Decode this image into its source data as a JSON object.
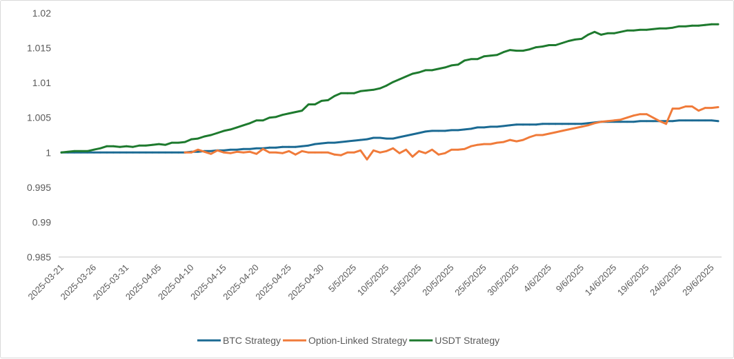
{
  "chart_data": {
    "type": "line",
    "title": "",
    "xlabel": "",
    "ylabel": "",
    "ylim": [
      0.985,
      1.02
    ],
    "yticks": [
      "0.985",
      "0.99",
      "0.995",
      "1",
      "1.005",
      "1.01",
      "1.015",
      "1.02"
    ],
    "ytick_values": [
      0.985,
      0.99,
      0.995,
      1,
      1.005,
      1.01,
      1.015,
      1.02
    ],
    "grid": false,
    "legend_position": "bottom",
    "x_tick_labels": [
      "2025-03-21",
      "2025-03-26",
      "2025-03-31",
      "2025-04-05",
      "2025-04-10",
      "2025-04-15",
      "2025-04-20",
      "2025-04-25",
      "2025-04-30",
      "5/5/2025",
      "10/5/2025",
      "15/5/2025",
      "20/5/2025",
      "25/5/2025",
      "30/5/2025",
      "4/6/2025",
      "9/6/2025",
      "14/6/2025",
      "19/6/2025",
      "24/6/2025",
      "29/6/2025"
    ],
    "x_tick_every_days": 5,
    "x": [
      "2025-03-21",
      "2025-03-22",
      "2025-03-23",
      "2025-03-24",
      "2025-03-25",
      "2025-03-26",
      "2025-03-27",
      "2025-03-28",
      "2025-03-29",
      "2025-03-30",
      "2025-03-31",
      "2025-04-01",
      "2025-04-02",
      "2025-04-03",
      "2025-04-04",
      "2025-04-05",
      "2025-04-06",
      "2025-04-07",
      "2025-04-08",
      "2025-04-09",
      "2025-04-10",
      "2025-04-11",
      "2025-04-12",
      "2025-04-13",
      "2025-04-14",
      "2025-04-15",
      "2025-04-16",
      "2025-04-17",
      "2025-04-18",
      "2025-04-19",
      "2025-04-20",
      "2025-04-21",
      "2025-04-22",
      "2025-04-23",
      "2025-04-24",
      "2025-04-25",
      "2025-04-26",
      "2025-04-27",
      "2025-04-28",
      "2025-04-29",
      "2025-04-30",
      "2025-05-01",
      "2025-05-02",
      "2025-05-03",
      "2025-05-04",
      "2025-05-05",
      "2025-05-06",
      "2025-05-07",
      "2025-05-08",
      "2025-05-09",
      "2025-05-10",
      "2025-05-11",
      "2025-05-12",
      "2025-05-13",
      "2025-05-14",
      "2025-05-15",
      "2025-05-16",
      "2025-05-17",
      "2025-05-18",
      "2025-05-19",
      "2025-05-20",
      "2025-05-21",
      "2025-05-22",
      "2025-05-23",
      "2025-05-24",
      "2025-05-25",
      "2025-05-26",
      "2025-05-27",
      "2025-05-28",
      "2025-05-29",
      "2025-05-30",
      "2025-05-31",
      "2025-06-01",
      "2025-06-02",
      "2025-06-03",
      "2025-06-04",
      "2025-06-05",
      "2025-06-06",
      "2025-06-07",
      "2025-06-08",
      "2025-06-09",
      "2025-06-10",
      "2025-06-11",
      "2025-06-12",
      "2025-06-13",
      "2025-06-14",
      "2025-06-15",
      "2025-06-16",
      "2025-06-17",
      "2025-06-18",
      "2025-06-19",
      "2025-06-20",
      "2025-06-21",
      "2025-06-22",
      "2025-06-23",
      "2025-06-24",
      "2025-06-25",
      "2025-06-26",
      "2025-06-27",
      "2025-06-28",
      "2025-06-29",
      "2025-06-30"
    ],
    "series": [
      {
        "name": "BTC Strategy",
        "color": "#1b6a93",
        "values": [
          1.0,
          1.0,
          1.0,
          1.0,
          1.0,
          1.0,
          1.0,
          1.0,
          1.0,
          1.0,
          1.0,
          1.0,
          1.0,
          1.0,
          1.0,
          1.0,
          1.0,
          1.0,
          1.0,
          1.0,
          1.0001,
          1.0001,
          1.0002,
          1.0002,
          1.0003,
          1.0003,
          1.0004,
          1.0004,
          1.0005,
          1.0005,
          1.0006,
          1.0006,
          1.0007,
          1.0007,
          1.0008,
          1.0008,
          1.0008,
          1.0009,
          1.001,
          1.0012,
          1.0013,
          1.0014,
          1.0014,
          1.0015,
          1.0016,
          1.0017,
          1.0018,
          1.0019,
          1.0021,
          1.0021,
          1.002,
          1.002,
          1.0022,
          1.0024,
          1.0026,
          1.0028,
          1.003,
          1.0031,
          1.0031,
          1.0031,
          1.0032,
          1.0032,
          1.0033,
          1.0034,
          1.0036,
          1.0036,
          1.0037,
          1.0037,
          1.0038,
          1.0039,
          1.004,
          1.004,
          1.004,
          1.004,
          1.0041,
          1.0041,
          1.0041,
          1.0041,
          1.0041,
          1.0041,
          1.0041,
          1.0042,
          1.0043,
          1.0044,
          1.0044,
          1.0044,
          1.0044,
          1.0044,
          1.0044,
          1.0045,
          1.0045,
          1.0045,
          1.0045,
          1.0045,
          1.0045,
          1.0046,
          1.0046,
          1.0046,
          1.0046,
          1.0046,
          1.0046,
          1.0045
        ]
      },
      {
        "name": "Option-Linked Strategy",
        "color": "#f07b3a",
        "values": [
          null,
          null,
          null,
          null,
          null,
          null,
          null,
          null,
          null,
          null,
          null,
          null,
          null,
          null,
          null,
          null,
          null,
          null,
          null,
          1.0,
          1.0,
          1.0004,
          1.0001,
          0.9998,
          1.0003,
          1.0,
          0.9999,
          1.0001,
          1.0,
          1.0001,
          0.9998,
          1.0005,
          1.0,
          1.0,
          0.9999,
          1.0002,
          0.9997,
          1.0002,
          1.0,
          1.0,
          1.0,
          1.0,
          0.9997,
          0.9996,
          1.0,
          1.0,
          1.0003,
          0.999,
          1.0003,
          1.0,
          1.0002,
          1.0006,
          0.9999,
          1.0004,
          0.9994,
          1.0002,
          0.9999,
          1.0004,
          0.9997,
          0.9999,
          1.0004,
          1.0004,
          1.0005,
          1.0009,
          1.0011,
          1.0012,
          1.0012,
          1.0014,
          1.0015,
          1.0018,
          1.0016,
          1.0018,
          1.0022,
          1.0025,
          1.0025,
          1.0027,
          1.0029,
          1.0031,
          1.0033,
          1.0035,
          1.0037,
          1.0039,
          1.0042,
          1.0044,
          1.0045,
          1.0046,
          1.0047,
          1.005,
          1.0053,
          1.0055,
          1.0055,
          1.005,
          1.0045,
          1.0041,
          1.0063,
          1.0063,
          1.0066,
          1.0066,
          1.006,
          1.0064,
          1.0064,
          1.0065
        ]
      },
      {
        "name": "USDT Strategy",
        "color": "#1e7a2e",
        "values": [
          1.0,
          1.0001,
          1.0002,
          1.0002,
          1.0002,
          1.0004,
          1.0006,
          1.0009,
          1.0009,
          1.0008,
          1.0009,
          1.0008,
          1.001,
          1.001,
          1.0011,
          1.0012,
          1.0011,
          1.0014,
          1.0014,
          1.0015,
          1.0019,
          1.002,
          1.0023,
          1.0025,
          1.0028,
          1.0031,
          1.0033,
          1.0036,
          1.0039,
          1.0042,
          1.0046,
          1.0046,
          1.005,
          1.0051,
          1.0054,
          1.0056,
          1.0058,
          1.006,
          1.0069,
          1.0069,
          1.0074,
          1.0075,
          1.0081,
          1.0085,
          1.0085,
          1.0085,
          1.0088,
          1.0089,
          1.009,
          1.0092,
          1.0096,
          1.0101,
          1.0105,
          1.0109,
          1.0113,
          1.0115,
          1.0118,
          1.0118,
          1.012,
          1.0122,
          1.0125,
          1.0126,
          1.0132,
          1.0134,
          1.0134,
          1.0138,
          1.0139,
          1.014,
          1.0144,
          1.0147,
          1.0146,
          1.0146,
          1.0148,
          1.0151,
          1.0152,
          1.0154,
          1.0154,
          1.0157,
          1.016,
          1.0162,
          1.0163,
          1.0169,
          1.0173,
          1.0169,
          1.0171,
          1.0171,
          1.0173,
          1.0175,
          1.0175,
          1.0176,
          1.0176,
          1.0177,
          1.0178,
          1.0178,
          1.0179,
          1.0181,
          1.0181,
          1.0182,
          1.0182,
          1.0183,
          1.0184,
          1.0184
        ]
      }
    ]
  }
}
